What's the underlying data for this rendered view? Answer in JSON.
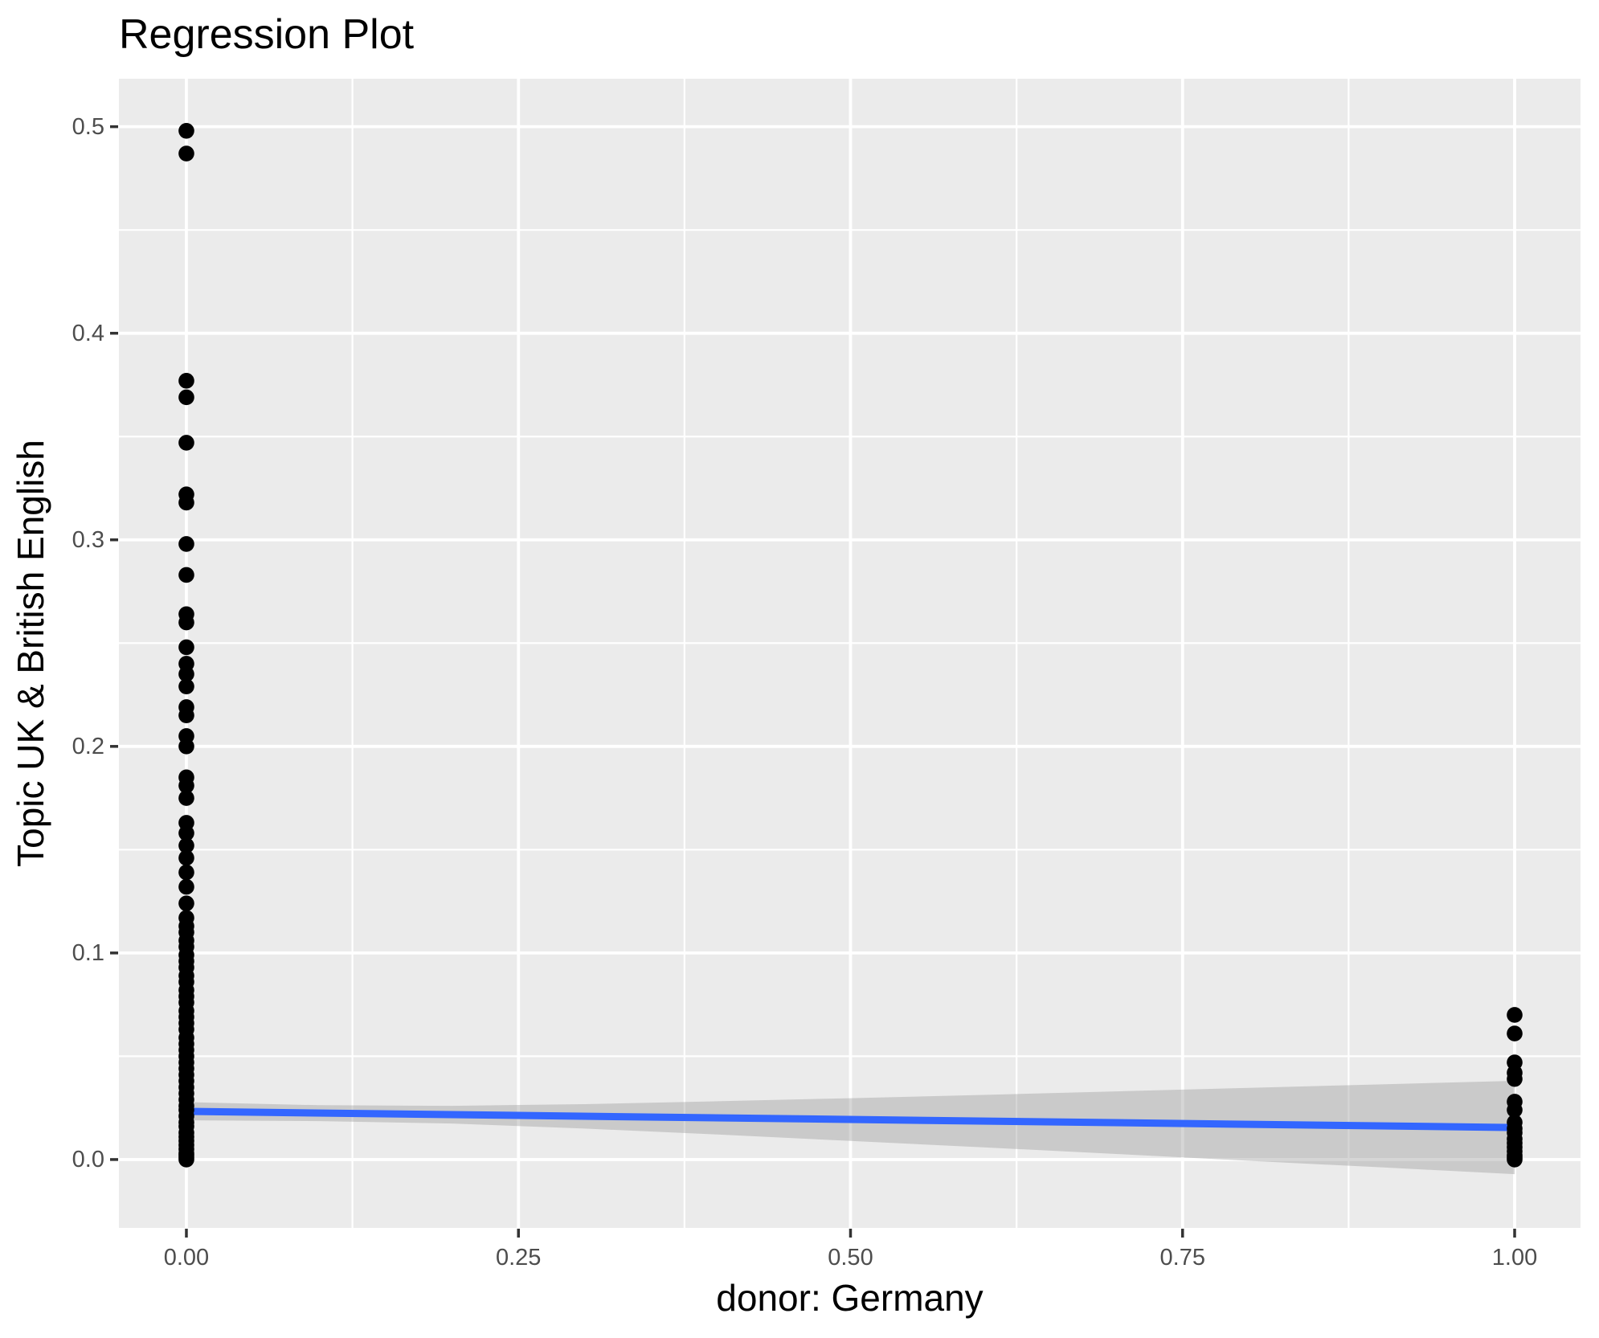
{
  "title": "Regression Plot",
  "axes": {
    "x": {
      "label": "donor: Germany",
      "tick_labels": [
        "0.00",
        "0.25",
        "0.50",
        "0.75",
        "1.00"
      ],
      "tick_values": [
        0,
        0.25,
        0.5,
        0.75,
        1
      ],
      "minor_gridlines": [
        0.125,
        0.375,
        0.625,
        0.875
      ],
      "range": [
        -0.0508,
        1.0496
      ]
    },
    "y": {
      "label": "Topic UK & British English",
      "tick_labels": [
        "0.0",
        "0.1",
        "0.2",
        "0.3",
        "0.4",
        "0.5"
      ],
      "tick_values": [
        0,
        0.1,
        0.2,
        0.3,
        0.4,
        0.5
      ],
      "minor_gridlines": [
        0.05,
        0.15,
        0.25,
        0.35,
        0.45
      ],
      "range": [
        -0.0331,
        0.5232
      ]
    }
  },
  "colors": {
    "background": "#FFFFFF",
    "panel_background": "#EBEBEB",
    "gridline": "#FFFFFF",
    "point": "#000000",
    "regression_line": "#3366FF",
    "confidence_band": "#999999",
    "tick_mark": "#333333",
    "tick_label": "#4D4D4D",
    "title_text": "#000000"
  },
  "chart_data": {
    "type": "scatter",
    "title": "Regression Plot",
    "xlabel": "donor: Germany",
    "ylabel": "Topic UK & British English",
    "xlim": [
      -0.0508,
      1.0496
    ],
    "ylim": [
      -0.0331,
      0.5232
    ],
    "grid": true,
    "legend": false,
    "series": [
      {
        "name": "observations at donor=0",
        "type": "scatter",
        "x": 0,
        "y": [
          0.498,
          0.487,
          0.377,
          0.369,
          0.347,
          0.322,
          0.318,
          0.298,
          0.283,
          0.264,
          0.26,
          0.248,
          0.24,
          0.235,
          0.229,
          0.219,
          0.215,
          0.205,
          0.2,
          0.185,
          0.181,
          0.175,
          0.163,
          0.158,
          0.152,
          0.146,
          0.139,
          0.132,
          0.124,
          0.117,
          0.113,
          0.11,
          0.106,
          0.103,
          0.099,
          0.096,
          0.093,
          0.089,
          0.086,
          0.082,
          0.079,
          0.076,
          0.072,
          0.069,
          0.066,
          0.063,
          0.059,
          0.056,
          0.053,
          0.05,
          0.047,
          0.044,
          0.041,
          0.038,
          0.035,
          0.032,
          0.029,
          0.026,
          0.024,
          0.021,
          0.018,
          0.016,
          0.013,
          0.011,
          0.009,
          0.007,
          0.005,
          0.003,
          0.002,
          0.001,
          0.0
        ]
      },
      {
        "name": "observations at donor=1",
        "type": "scatter",
        "x": 1,
        "y": [
          0.07,
          0.061,
          0.047,
          0.042,
          0.039,
          0.028,
          0.024,
          0.018,
          0.015,
          0.013,
          0.01,
          0.008,
          0.006,
          0.004,
          0.002,
          0.001,
          0.0
        ]
      },
      {
        "name": "linear fit",
        "type": "line",
        "x": [
          0,
          1
        ],
        "y": [
          0.0233,
          0.0155
        ]
      },
      {
        "name": "95% confidence band",
        "type": "ribbon",
        "x": [
          0,
          0.1,
          0.2,
          0.3,
          0.4,
          0.5,
          0.6,
          0.7,
          0.8,
          0.9,
          1.0
        ],
        "upper": [
          0.0278,
          0.0263,
          0.026,
          0.0268,
          0.0282,
          0.0297,
          0.0313,
          0.033,
          0.0347,
          0.0364,
          0.0381
        ],
        "lower": [
          0.019,
          0.0186,
          0.0174,
          0.015,
          0.0121,
          0.009,
          0.0059,
          0.0027,
          -0.0006,
          -0.0038,
          -0.0071
        ]
      }
    ]
  }
}
